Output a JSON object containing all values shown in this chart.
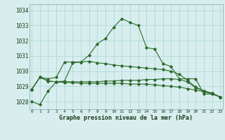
{
  "title": "Graphe pression niveau de la mer (hPa)",
  "hours": [
    0,
    1,
    2,
    3,
    4,
    5,
    6,
    7,
    8,
    9,
    10,
    11,
    12,
    13,
    14,
    15,
    16,
    17,
    18,
    19,
    20,
    21,
    22,
    23
  ],
  "line1": [
    1028.0,
    1027.8,
    1028.7,
    1029.3,
    1029.35,
    1030.55,
    1030.6,
    1031.05,
    1031.8,
    1032.15,
    1032.9,
    1033.45,
    1033.2,
    1033.0,
    1031.55,
    1031.45,
    1030.5,
    1030.3,
    1029.5,
    1029.5,
    1029.5,
    1028.5,
    1028.5,
    1028.3
  ],
  "line2": [
    1028.8,
    1029.6,
    1029.35,
    1029.3,
    1029.25,
    1029.25,
    1029.2,
    1029.2,
    1029.2,
    1029.2,
    1029.2,
    1029.2,
    1029.15,
    1029.15,
    1029.15,
    1029.1,
    1029.05,
    1029.0,
    1028.95,
    1028.85,
    1028.75,
    1028.65,
    1028.5,
    1028.3
  ],
  "line3": [
    1028.8,
    1029.6,
    1029.35,
    1029.3,
    1029.3,
    1029.3,
    1029.3,
    1029.3,
    1029.3,
    1029.35,
    1029.35,
    1029.4,
    1029.4,
    1029.4,
    1029.45,
    1029.45,
    1029.5,
    1029.5,
    1029.45,
    1029.3,
    1028.9,
    1028.7,
    1028.55,
    1028.3
  ],
  "line4": [
    1028.8,
    1029.6,
    1029.5,
    1029.6,
    1030.6,
    1030.6,
    1030.6,
    1030.65,
    1030.55,
    1030.5,
    1030.4,
    1030.35,
    1030.3,
    1030.25,
    1030.2,
    1030.15,
    1030.1,
    1030.0,
    1029.8,
    1029.4,
    1028.95,
    1028.7,
    1028.55,
    1028.3
  ],
  "line_color": "#2d6a2d",
  "bg_color": "#d8eeee",
  "grid_color": "#aad4d4",
  "ylim_min": 1027.5,
  "ylim_max": 1034.4,
  "yticks": [
    1028,
    1029,
    1030,
    1031,
    1032,
    1033,
    1034
  ]
}
